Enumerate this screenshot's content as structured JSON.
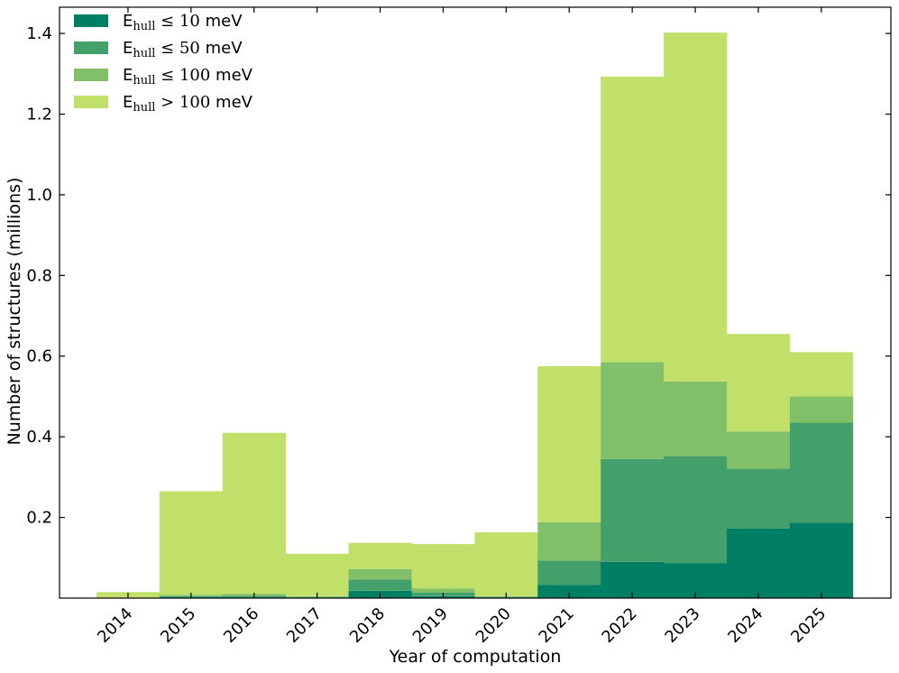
{
  "chart_data": {
    "type": "bar",
    "stacked": true,
    "title": "",
    "xlabel": "Year of computation",
    "ylabel": "Number of structures (millions)",
    "categories": [
      "2014",
      "2015",
      "2016",
      "2017",
      "2018",
      "2019",
      "2020",
      "2021",
      "2022",
      "2023",
      "2024",
      "2025"
    ],
    "ylim": [
      0,
      1.465
    ],
    "yticks": [
      "0.2",
      "0.4",
      "0.6",
      "0.8",
      "1.0",
      "1.2",
      "1.4"
    ],
    "grid": false,
    "legend_position": "top-left",
    "series": [
      {
        "name": "E_hull ≤ 10 meV",
        "color": "#017f64",
        "values": [
          0.0,
          0.002,
          0.002,
          0.0,
          0.018,
          0.005,
          0.001,
          0.033,
          0.09,
          0.087,
          0.173,
          0.187
        ]
      },
      {
        "name": "E_hull ≤ 50 meV",
        "color": "#44a06a",
        "values": [
          0.0,
          0.003,
          0.004,
          0.002,
          0.028,
          0.009,
          0.002,
          0.06,
          0.255,
          0.265,
          0.148,
          0.248
        ]
      },
      {
        "name": "E_hull ≤ 100 meV",
        "color": "#81bf69",
        "values": [
          0.0,
          0.003,
          0.004,
          0.003,
          0.026,
          0.01,
          0.002,
          0.095,
          0.24,
          0.185,
          0.092,
          0.065
        ]
      },
      {
        "name": "E_hull > 100 meV",
        "color": "#c1e06a",
        "values": [
          0.015,
          0.257,
          0.4,
          0.105,
          0.065,
          0.11,
          0.158,
          0.387,
          0.708,
          0.865,
          0.242,
          0.11
        ]
      }
    ],
    "legend": [
      {
        "label": "E",
        "sub": "hull",
        "rel": "≤",
        "num": "10",
        "unit": " meV"
      },
      {
        "label": "E",
        "sub": "hull",
        "rel": "≤",
        "num": "50",
        "unit": " meV"
      },
      {
        "label": "E",
        "sub": "hull",
        "rel": "≤",
        "num": "100",
        "unit": " meV"
      },
      {
        "label": "E",
        "sub": "hull",
        "rel": ">",
        "num": "100",
        "unit": " meV"
      }
    ]
  }
}
